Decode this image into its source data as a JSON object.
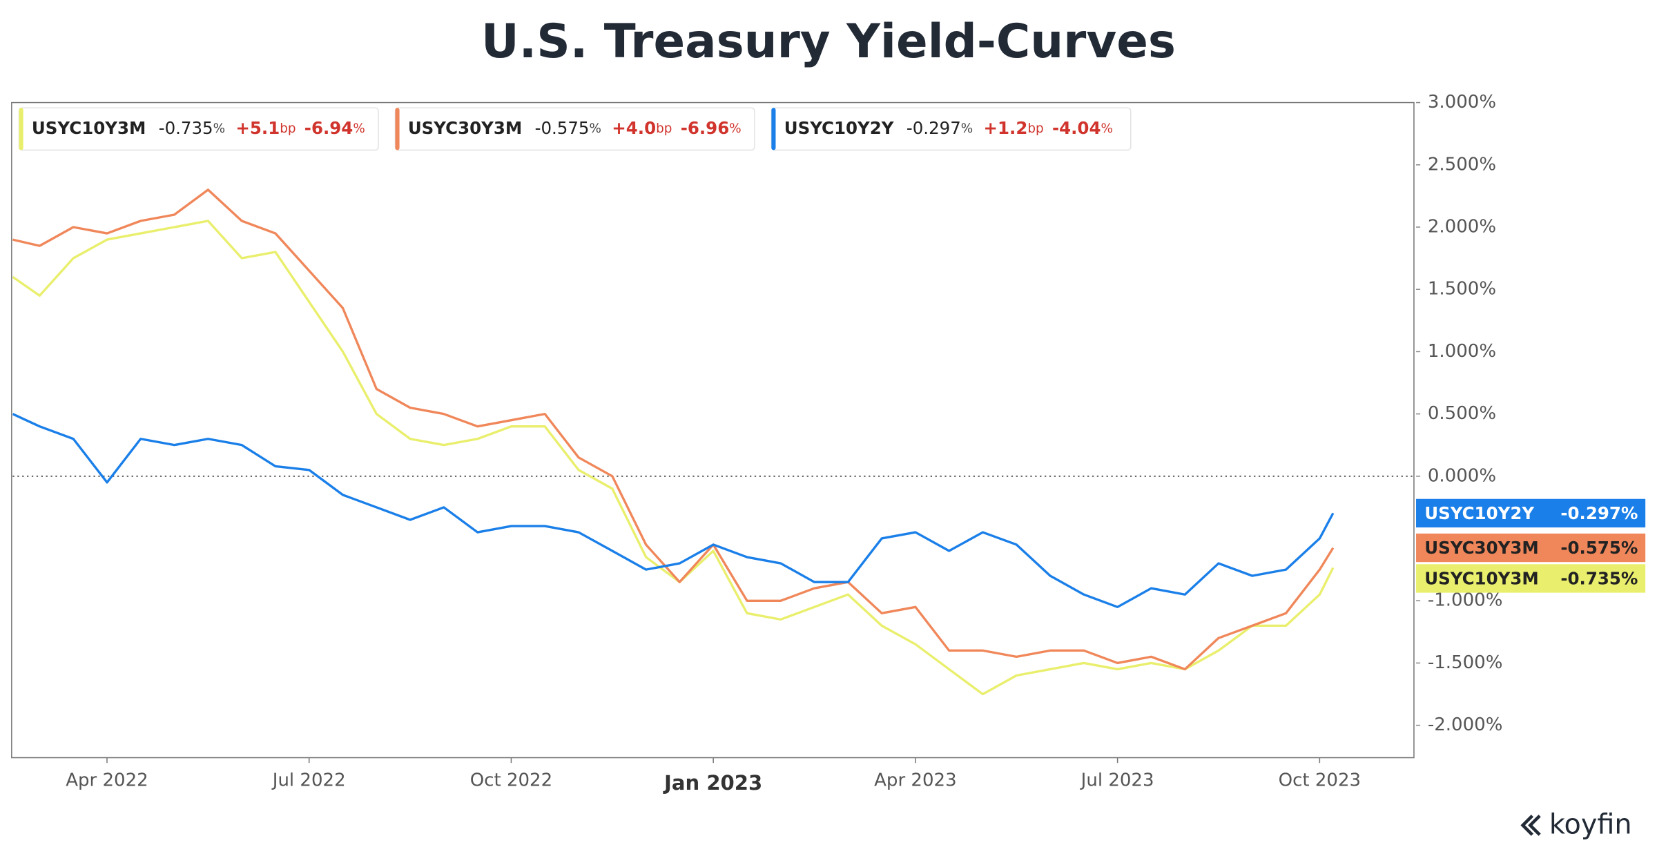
{
  "chart_data": {
    "type": "line",
    "title": "U.S. Treasury Yield-Curves",
    "brand": "koyfin",
    "x": [
      1.6,
      2.0,
      2.5,
      3.0,
      3.5,
      4.0,
      4.5,
      5.0,
      5.5,
      6.0,
      6.5,
      7.0,
      7.5,
      8.0,
      8.5,
      9.0,
      9.5,
      10.0,
      10.5,
      11.0,
      11.5,
      12.0,
      12.5,
      13.0,
      13.5,
      14.0,
      14.5,
      15.0,
      15.5,
      16.0,
      16.5,
      17.0,
      17.5,
      18.0,
      18.5,
      19.0,
      19.5,
      20.0,
      20.5,
      21.0,
      21.2
    ],
    "xlim": [
      1.6,
      22.4
    ],
    "xticks": [
      {
        "value": 3,
        "label": "Apr 2022"
      },
      {
        "value": 6,
        "label": "Jul 2022"
      },
      {
        "value": 9,
        "label": "Oct 2022"
      },
      {
        "value": 12,
        "label": "Jan 2023",
        "emphasis": true
      },
      {
        "value": 15,
        "label": "Apr 2023"
      },
      {
        "value": 18,
        "label": "Jul 2023"
      },
      {
        "value": 21,
        "label": "Oct 2023"
      }
    ],
    "ylim": [
      -2.26,
      3.0
    ],
    "yticks": [
      {
        "value": -2,
        "label": "-2.000%"
      },
      {
        "value": -1.5,
        "label": "-1.500%"
      },
      {
        "value": -1,
        "label": "-1.000%"
      },
      {
        "value": 0,
        "label": "0.000%"
      },
      {
        "value": 0.5,
        "label": "0.500%"
      },
      {
        "value": 1,
        "label": "1.000%"
      },
      {
        "value": 1.5,
        "label": "1.500%"
      },
      {
        "value": 2,
        "label": "2.000%"
      },
      {
        "value": 2.5,
        "label": "2.500%"
      },
      {
        "value": 3,
        "label": "3.000%"
      }
    ],
    "zero_line": true,
    "series": [
      {
        "name": "USYC10Y3M",
        "color": "#e9ef6c",
        "badge_text_color": "#222222",
        "values": [
          1.6,
          1.45,
          1.75,
          1.9,
          1.95,
          2.0,
          2.05,
          1.75,
          1.8,
          1.4,
          1.0,
          0.5,
          0.3,
          0.25,
          0.3,
          0.4,
          0.4,
          0.05,
          -0.1,
          -0.65,
          -0.85,
          -0.6,
          -1.1,
          -1.15,
          -1.05,
          -0.95,
          -1.2,
          -1.35,
          -1.55,
          -1.75,
          -1.6,
          -1.55,
          -1.5,
          -1.55,
          -1.5,
          -1.55,
          -1.4,
          -1.2,
          -1.2,
          -0.95,
          -0.735
        ],
        "legend": {
          "last": "-0.735",
          "last_unit": "%",
          "change": "+5.1",
          "change_unit": "bp",
          "pct": "-6.94",
          "pct_unit": "%"
        },
        "badge_label": "-0.735%"
      },
      {
        "name": "USYC30Y3M",
        "color": "#f0875a",
        "badge_text_color": "#222222",
        "values": [
          1.9,
          1.85,
          2.0,
          1.95,
          2.05,
          2.1,
          2.3,
          2.05,
          1.95,
          1.65,
          1.35,
          0.7,
          0.55,
          0.5,
          0.4,
          0.45,
          0.5,
          0.15,
          0.0,
          -0.55,
          -0.85,
          -0.55,
          -1.0,
          -1.0,
          -0.9,
          -0.85,
          -1.1,
          -1.05,
          -1.4,
          -1.4,
          -1.45,
          -1.4,
          -1.4,
          -1.5,
          -1.45,
          -1.55,
          -1.3,
          -1.2,
          -1.1,
          -0.75,
          -0.575
        ],
        "legend": {
          "last": "-0.575",
          "last_unit": "%",
          "change": "+4.0",
          "change_unit": "bp",
          "pct": "-6.96",
          "pct_unit": "%"
        },
        "badge_label": "-0.575%"
      },
      {
        "name": "USYC10Y2Y",
        "color": "#1a7fe8",
        "badge_text_color": "#ffffff",
        "values": [
          0.5,
          0.4,
          0.3,
          -0.05,
          0.3,
          0.25,
          0.3,
          0.25,
          0.08,
          0.05,
          -0.15,
          -0.25,
          -0.35,
          -0.25,
          -0.45,
          -0.4,
          -0.4,
          -0.45,
          -0.6,
          -0.75,
          -0.7,
          -0.55,
          -0.65,
          -0.7,
          -0.85,
          -0.85,
          -0.5,
          -0.45,
          -0.6,
          -0.45,
          -0.55,
          -0.8,
          -0.95,
          -1.05,
          -0.9,
          -0.95,
          -0.7,
          -0.8,
          -0.75,
          -0.5,
          -0.297
        ],
        "legend": {
          "last": "-0.297",
          "last_unit": "%",
          "change": "+1.2",
          "change_unit": "bp",
          "pct": "-4.04",
          "pct_unit": "%"
        },
        "badge_label": "-0.297%"
      }
    ]
  }
}
